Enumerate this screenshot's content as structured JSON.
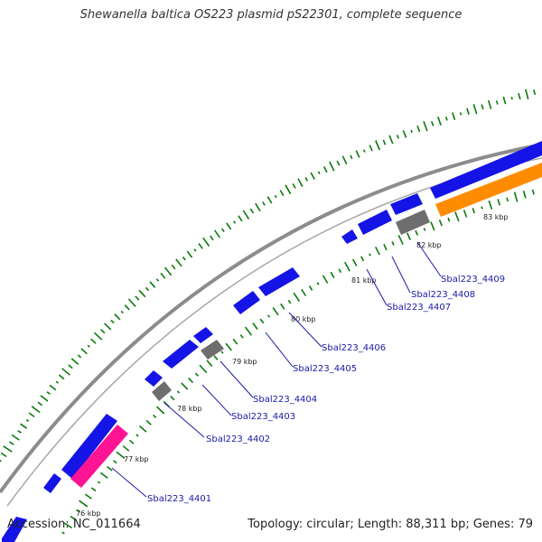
{
  "title": "Shewanella baltica OS223 plasmid pS22301, complete sequence",
  "accession_text": "Accession: NC_011664",
  "summary_text": "Topology: circular; Length: 88,311 bp; Genes: 79",
  "colors": {
    "cds_forward": "#1414e6",
    "pseudo": "#6e6e6e",
    "highlight_pink": "#ff1493",
    "highlight_orange": "#ff8c00",
    "backbone": "#8c8c8c",
    "gc_skew_dots": "#0a7a0a",
    "label_text": "#1a1aa6"
  },
  "scale_labels": [
    "76 kbp",
    "77 kbp",
    "78 kbp",
    "79 kbp",
    "80 kbp",
    "81 kbp",
    "82 kbp",
    "83 kbp"
  ],
  "gene_labels": [
    "Sbal223_4401",
    "Sbal223_4402",
    "Sbal223_4403",
    "Sbal223_4404",
    "Sbal223_4405",
    "Sbal223_4406",
    "Sbal223_4407",
    "Sbal223_4408",
    "Sbal223_4409"
  ]
}
